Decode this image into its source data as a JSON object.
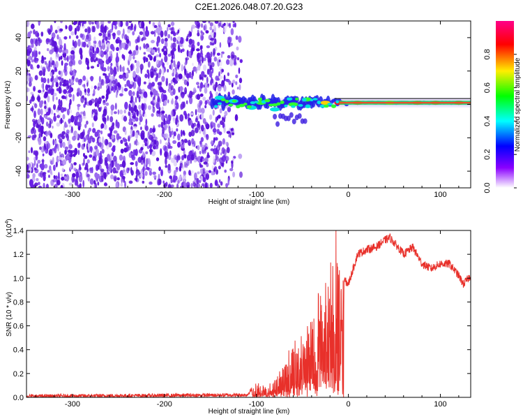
{
  "figure_title": "C2E1.2026.048.07.20.G23",
  "colors": {
    "snr_line": "#e8302a",
    "frame": "#000000",
    "spectro_noise_dark": "#6a18e0",
    "spectro_noise_light": "#d9c8f5",
    "colorbar": [
      "#ff00ff",
      "#ff0000",
      "#ffff00",
      "#00ff00",
      "#00ffff",
      "#0000ff",
      "#9000ff",
      "#ffffff"
    ]
  },
  "chart_data": [
    {
      "type": "heatmap",
      "name": "spectrogram",
      "xlabel": "Height of straight line (km)",
      "ylabel": "Frequency (Hz)",
      "xlim": [
        -350,
        133
      ],
      "ylim": [
        -50,
        50
      ],
      "xticks": [
        -300,
        -200,
        -100,
        0,
        100
      ],
      "xtick_labels": [
        "-300",
        "-200",
        "-100",
        "0",
        "100"
      ],
      "yticks": [
        -40,
        -20,
        0,
        20,
        40
      ],
      "ytick_labels": [
        "-40",
        "-20",
        "0",
        "20",
        "40"
      ],
      "noise_region_x": [
        -350,
        -125
      ],
      "signal_band": {
        "x_start": -148,
        "x_end": 133,
        "center_freq": 1,
        "strong_blobs": [
          {
            "x": -140,
            "f": 4,
            "level": 0.45
          },
          {
            "x": -125,
            "f": 2,
            "level": 0.55
          },
          {
            "x": -105,
            "f": -2,
            "level": 0.5
          },
          {
            "x": -95,
            "f": 1,
            "level": 0.6
          },
          {
            "x": -80,
            "f": -3,
            "level": 0.55
          },
          {
            "x": -60,
            "f": 0,
            "level": 0.6
          },
          {
            "x": -45,
            "f": 3,
            "level": 0.6
          },
          {
            "x": -25,
            "f": 1,
            "level": 0.85
          },
          {
            "x": -10,
            "f": 1,
            "level": 0.9
          },
          {
            "x": 10,
            "f": 1,
            "level": 0.9
          },
          {
            "x": 45,
            "f": 1,
            "level": 0.75
          },
          {
            "x": 75,
            "f": 1,
            "level": 0.9
          },
          {
            "x": 95,
            "f": 1,
            "level": 1.0
          },
          {
            "x": 120,
            "f": 1,
            "level": 0.9
          }
        ]
      }
    },
    {
      "type": "colorbar",
      "label": "Normalized spectral amplitude",
      "range": [
        0.0,
        1.0
      ],
      "ticks": [
        0.0,
        0.2,
        0.4,
        0.6,
        0.8
      ],
      "tick_labels": [
        "0.0",
        "0.2",
        "0.4",
        "0.6",
        "0.8"
      ]
    },
    {
      "type": "line",
      "name": "snr",
      "xlabel": "Height of straight line (km)",
      "ylabel": "SNR (10 * v/v)",
      "scale_label": "(x10",
      "scale_exponent": "4",
      "xlim": [
        -350,
        133
      ],
      "ylim": [
        0.0,
        1.4
      ],
      "xticks": [
        -300,
        -200,
        -100,
        0,
        100
      ],
      "xtick_labels": [
        "-300",
        "-200",
        "-100",
        "0",
        "100"
      ],
      "yticks": [
        0.0,
        0.2,
        0.4,
        0.6,
        0.8,
        1.0,
        1.2,
        1.4
      ],
      "ytick_labels": [
        "0.0",
        "0.2",
        "0.4",
        "0.6",
        "0.8",
        "1.0",
        "1.2",
        "1.4"
      ],
      "envelope": {
        "x": [
          -350,
          -110,
          -100,
          -90,
          -80,
          -70,
          -60,
          -50,
          -40,
          -30,
          -20,
          -10,
          0,
          10,
          20,
          30,
          40,
          45,
          55,
          60,
          70,
          80,
          90,
          100,
          110,
          120,
          125,
          133
        ],
        "y": [
          0.01,
          0.02,
          0.12,
          0.08,
          0.15,
          0.3,
          0.42,
          0.52,
          0.68,
          0.85,
          1.05,
          1.02,
          0.95,
          1.2,
          1.24,
          1.26,
          1.32,
          1.34,
          1.25,
          1.2,
          1.26,
          1.12,
          1.08,
          1.12,
          1.12,
          1.02,
          0.95,
          1.02
        ]
      },
      "dropout_band_x": [
        -105,
        -5
      ]
    }
  ]
}
